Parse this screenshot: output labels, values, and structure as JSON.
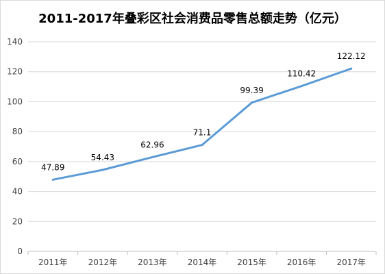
{
  "chart_data": {
    "type": "line",
    "title": "2011-2017年叠彩区社会消费品零售总额走势（亿元）",
    "categories": [
      "2011年",
      "2012年",
      "2013年",
      "2014年",
      "2015年",
      "2016年",
      "2017年"
    ],
    "series": [
      {
        "values": [
          47.89,
          54.43,
          62.96,
          71.1,
          99.39,
          110.42,
          122.12
        ]
      }
    ],
    "data_labels": [
      "47.89",
      "54.43",
      "62.96",
      "71.1",
      "99.39",
      "110.42",
      "122.12"
    ],
    "y_ticks": [
      0,
      20,
      40,
      60,
      80,
      100,
      120,
      140
    ],
    "ylim": [
      0,
      140
    ],
    "grid": true,
    "legend": "none",
    "line_color": "#5B9BD5",
    "grid_color": "#D9D9D9"
  }
}
